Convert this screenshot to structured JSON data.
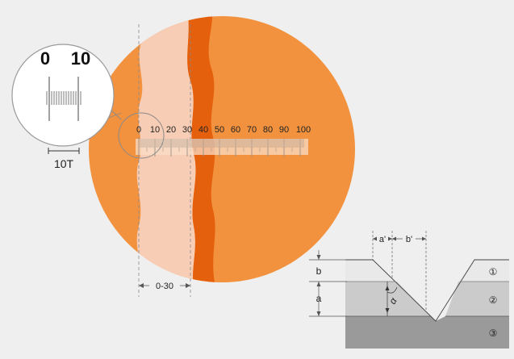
{
  "scale": {
    "numbers": [
      "0",
      "10",
      "20",
      "30",
      "40",
      "50",
      "60",
      "70",
      "80",
      "90",
      "100"
    ]
  },
  "magnifier": {
    "left_number": "0",
    "right_number": "10",
    "unit_label": "10T"
  },
  "range_label": "0-30",
  "cross_section": {
    "width_labels": [
      "a'",
      "b'"
    ],
    "depth_labels": [
      "b",
      "a"
    ],
    "angle_label": "α",
    "layer_numbers": [
      "①",
      "②",
      "③"
    ]
  },
  "colors": {
    "background": "#efefef",
    "disc_orange": "#f2923e",
    "light_band": "#f8cdb5",
    "dark_band": "#e5600d",
    "layer_1": "#e9e9e9",
    "layer_2": "#cbcbcb",
    "layer_3": "#9a9a9a"
  }
}
